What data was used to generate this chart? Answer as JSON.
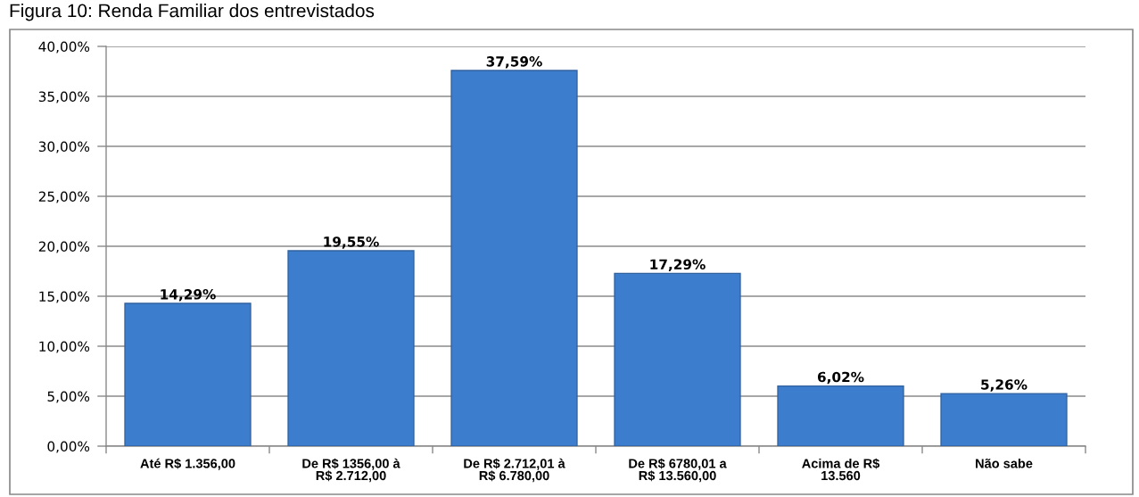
{
  "chart_data": {
    "type": "bar",
    "title": "Figura 10: Renda Familiar dos entrevistados",
    "categories": [
      "Até R$ 1.356,00",
      "De R$ 1356,00 à R$ 2.712,00",
      "De R$ 2.712,01 à R$ 6.780,00",
      "De R$ 6780,01 a R$ 13.560,00",
      "Acima de R$ 13.560",
      "Não sabe"
    ],
    "values": [
      14.29,
      19.55,
      37.59,
      17.29,
      6.02,
      5.26
    ],
    "value_labels": [
      "14,29%",
      "19,55%",
      "37,59%",
      "17,29%",
      "6,02%",
      "5,26%"
    ],
    "color": "#3d7dcd",
    "ylim": [
      0,
      40
    ],
    "yticks": [
      {
        "value": 0,
        "label": "0,00%"
      },
      {
        "value": 5,
        "label": "5,00%"
      },
      {
        "value": 10,
        "label": "10,00%"
      },
      {
        "value": 15,
        "label": "15,00%"
      },
      {
        "value": 20,
        "label": "20,00%"
      },
      {
        "value": 25,
        "label": "25,00%"
      },
      {
        "value": 30,
        "label": "30,00%"
      },
      {
        "value": 35,
        "label": "35,00%"
      },
      {
        "value": 40,
        "label": "40,00%"
      }
    ],
    "grid": "y",
    "legend": false
  }
}
